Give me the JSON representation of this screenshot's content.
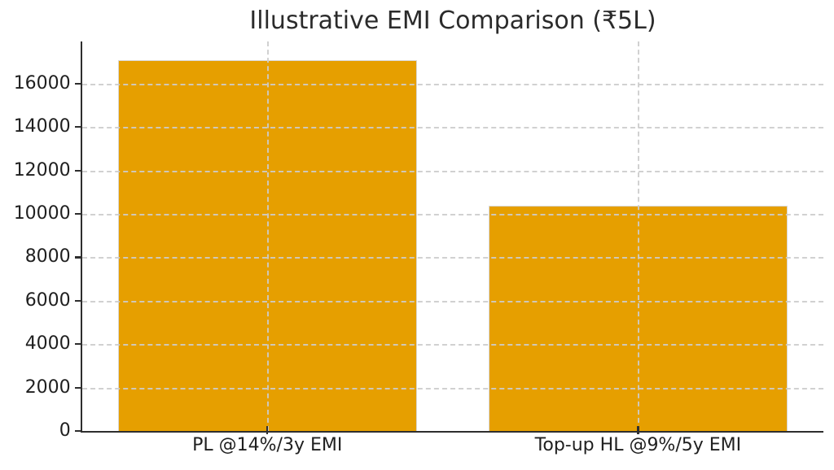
{
  "chart_data": {
    "type": "bar",
    "title": "Illustrative EMI Comparison (₹5L)",
    "categories": [
      "PL @14%/3y EMI",
      "Top-up HL @9%/5y EMI"
    ],
    "values": [
      17089,
      10379
    ],
    "xlabel": "",
    "ylabel": "",
    "ylim": [
      0,
      17943
    ],
    "yticks": [
      0,
      2000,
      4000,
      6000,
      8000,
      10000,
      12000,
      14000,
      16000
    ],
    "grid": "dashed, drawn above bars, horizontal at each ytick and vertical at each category center",
    "legend": "none",
    "colors": {
      "bar": "#E69F00",
      "bar_edge": "#d8d8d8",
      "grid": "#cccccc",
      "spine": "#2e2e2e",
      "text": "#1f1f1f",
      "background": "#ffffff"
    }
  }
}
